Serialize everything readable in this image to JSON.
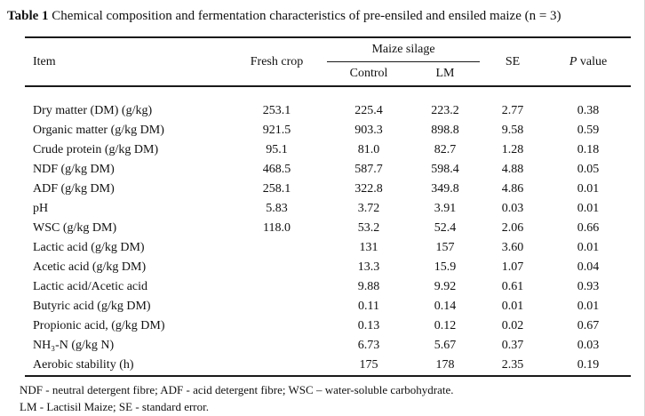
{
  "title": {
    "label": "Table 1",
    "text": " Chemical composition and fermentation characteristics of pre-ensiled and ensiled maize (n = 3)"
  },
  "table": {
    "headers": {
      "item": "Item",
      "fresh_crop": "Fresh crop",
      "group": "Maize silage",
      "control": "Control",
      "lm": "LM",
      "se": "SE",
      "p_italic": "P",
      "p_rest": " value"
    },
    "rows": [
      [
        "Dry matter (DM) (g/kg)",
        "253.1",
        "225.4",
        "223.2",
        "2.77",
        "0.38"
      ],
      [
        "Organic matter (g/kg DM)",
        "921.5",
        "903.3",
        "898.8",
        "9.58",
        "0.59"
      ],
      [
        "Crude protein (g/kg DM)",
        "95.1",
        "81.0",
        "82.7",
        "1.28",
        "0.18"
      ],
      [
        "NDF (g/kg DM)",
        "468.5",
        "587.7",
        "598.4",
        "4.88",
        "0.05"
      ],
      [
        "ADF (g/kg DM)",
        "258.1",
        "322.8",
        "349.8",
        "4.86",
        "0.01"
      ],
      [
        "pH",
        "5.83",
        "3.72",
        "3.91",
        "0.03",
        "0.01"
      ],
      [
        "WSC (g/kg DM)",
        "118.0",
        "53.2",
        "52.4",
        "2.06",
        "0.66"
      ],
      [
        "Lactic acid (g/kg DM)",
        "",
        "131",
        "157",
        "3.60",
        "0.01"
      ],
      [
        "Acetic acid (g/kg DM)",
        "",
        "13.3",
        "15.9",
        "1.07",
        "0.04"
      ],
      [
        "Lactic acid/Acetic acid",
        "",
        "9.88",
        "9.92",
        "0.61",
        "0.93"
      ],
      [
        "Butyric acid (g/kg DM)",
        "",
        "0.11",
        "0.14",
        "0.01",
        "0.01"
      ],
      [
        "Propionic acid, (g/kg DM)",
        "",
        "0.13",
        "0.12",
        "0.02",
        "0.67"
      ],
      [
        "NH₃-N (g/kg N)",
        "",
        "6.73",
        "5.67",
        "0.37",
        "0.03"
      ],
      [
        "Aerobic stability (h)",
        "",
        "175",
        "178",
        "2.35",
        "0.19"
      ]
    ]
  },
  "footnotes": {
    "line1": "NDF - neutral detergent fibre; ADF - acid detergent fibre; WSC – water-soluble carbohydrate.",
    "line2": "LM - Lactisil Maize; SE - standard error."
  }
}
